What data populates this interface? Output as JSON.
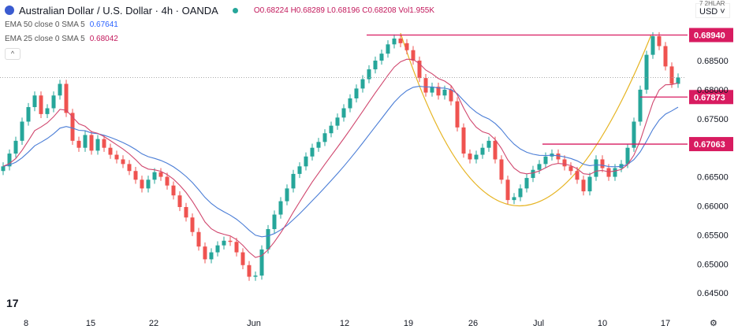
{
  "header": {
    "title": "Australian Dollar / U.S. Dollar · 4h · OANDA",
    "open": "O0.68224",
    "high": "H0.68289",
    "low": "L0.68196",
    "close": "C0.68208",
    "volume": "Vol1.955K",
    "indicators": [
      {
        "label": "EMA 50 close 0 SMA 5",
        "value": "0.67641",
        "color": "#2962ff"
      },
      {
        "label": "EMA 25 close 0 SMA 5",
        "value": "0.68042",
        "color": "#e91e63"
      }
    ],
    "currency": "USD",
    "currency_top": "7 2HLAR"
  },
  "colors": {
    "up": "#26a69a",
    "down": "#ef5350",
    "level": "#d81b60",
    "ema50": "#4a7dd6",
    "ema25": "#d0476e",
    "pattern": "#e6b422"
  },
  "chart_data": {
    "type": "candlestick",
    "timeframe": "4h",
    "x_ticks": [
      "8",
      "15",
      "22",
      "Jun",
      "12",
      "19",
      "26",
      "Jul",
      "10",
      "17"
    ],
    "y_ticks": [
      "0.68500",
      "0.68000",
      "0.67500",
      "0.66500",
      "0.66000",
      "0.65500",
      "0.65000",
      "0.64500"
    ],
    "ylim": [
      0.642,
      0.6915
    ],
    "closes": [
      0.6668,
      0.669,
      0.6712,
      0.6745,
      0.677,
      0.679,
      0.6758,
      0.6768,
      0.679,
      0.681,
      0.676,
      0.6712,
      0.67,
      0.6722,
      0.6695,
      0.6715,
      0.67,
      0.6688,
      0.668,
      0.6672,
      0.666,
      0.6645,
      0.663,
      0.6645,
      0.6658,
      0.665,
      0.6635,
      0.6618,
      0.6598,
      0.658,
      0.6555,
      0.653,
      0.6508,
      0.652,
      0.6532,
      0.654,
      0.6538,
      0.652,
      0.6498,
      0.6478,
      0.648,
      0.6525,
      0.656,
      0.6585,
      0.6608,
      0.663,
      0.6655,
      0.6668,
      0.6685,
      0.67,
      0.671,
      0.6725,
      0.6738,
      0.6752,
      0.6768,
      0.6785,
      0.6802,
      0.6818,
      0.6835,
      0.685,
      0.6862,
      0.6878,
      0.6888,
      0.688,
      0.6868,
      0.685,
      0.682,
      0.6795,
      0.6805,
      0.679,
      0.68,
      0.678,
      0.6735,
      0.669,
      0.668,
      0.6688,
      0.67,
      0.6712,
      0.668,
      0.6645,
      0.661,
      0.6615,
      0.663,
      0.6648,
      0.6662,
      0.6672,
      0.6685,
      0.669,
      0.668,
      0.6668,
      0.666,
      0.6645,
      0.6625,
      0.665,
      0.668,
      0.6665,
      0.665,
      0.6665,
      0.6672,
      0.67,
      0.6745,
      0.68,
      0.686,
      0.6892,
      0.6875,
      0.684,
      0.681,
      0.6821
    ],
    "levels": [
      {
        "price": 0.6894,
        "label": "0.68940"
      },
      {
        "price": 0.67873,
        "label": "0.67873"
      },
      {
        "price": 0.67063,
        "label": "0.67063"
      }
    ],
    "last_price": 0.68208,
    "pattern": "cup"
  }
}
